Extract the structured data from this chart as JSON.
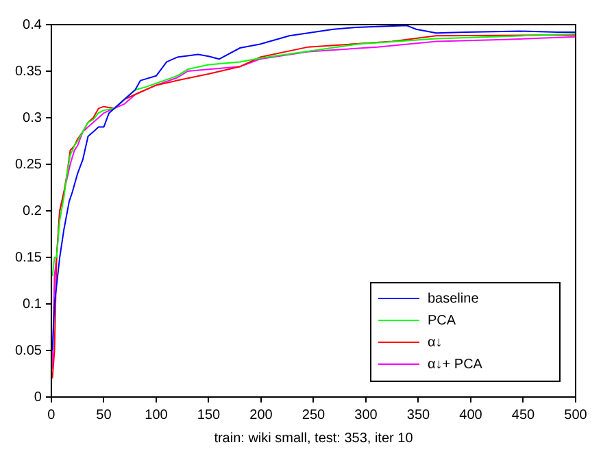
{
  "chart_data": {
    "type": "line",
    "xlabel": "train: wiki small, test: 353, iter 10",
    "xlim": [
      0,
      500
    ],
    "xticks": [
      0,
      50,
      100,
      150,
      200,
      250,
      300,
      350,
      400,
      450,
      500
    ],
    "ylim": [
      0,
      0.4
    ],
    "yticks": [
      0,
      0.05,
      0.1,
      0.15,
      0.2,
      0.25,
      0.3,
      0.35,
      0.4
    ],
    "grid": false,
    "legend": "bottom right",
    "marker": "none",
    "line_style": "solid",
    "series": [
      {
        "name": "baseline",
        "color": "#0000ff",
        "x": [
          1,
          3,
          5,
          8,
          12,
          17,
          20,
          25,
          30,
          35,
          40,
          45,
          50,
          55,
          60,
          70,
          80,
          85,
          100,
          110,
          120,
          140,
          150,
          160,
          180,
          199,
          227,
          269,
          290,
          339,
          348,
          367,
          395,
          447,
          483,
          500
        ],
        "values": [
          0.05,
          0.1,
          0.12,
          0.15,
          0.18,
          0.21,
          0.22,
          0.24,
          0.255,
          0.28,
          0.285,
          0.29,
          0.29,
          0.305,
          0.31,
          0.32,
          0.33,
          0.34,
          0.345,
          0.36,
          0.365,
          0.368,
          0.366,
          0.363,
          0.375,
          0.379,
          0.388,
          0.395,
          0.397,
          0.399,
          0.395,
          0.391,
          0.392,
          0.393,
          0.392,
          0.392
        ]
      },
      {
        "name": "PCA",
        "color": "#00ff00",
        "x": [
          1,
          3,
          5,
          8,
          12,
          15,
          18,
          22,
          25,
          30,
          35,
          40,
          45,
          50,
          60,
          70,
          80,
          90,
          100,
          120,
          130,
          150,
          180,
          199,
          292,
          367,
          500
        ],
        "values": [
          0.13,
          0.15,
          0.15,
          0.19,
          0.215,
          0.24,
          0.26,
          0.27,
          0.275,
          0.285,
          0.295,
          0.298,
          0.305,
          0.308,
          0.31,
          0.32,
          0.33,
          0.333,
          0.337,
          0.345,
          0.352,
          0.357,
          0.36,
          0.364,
          0.379,
          0.385,
          0.39
        ]
      },
      {
        "name": "α↓",
        "color": "#ff0000",
        "x": [
          1,
          3,
          5,
          8,
          12,
          15,
          18,
          22,
          25,
          30,
          35,
          40,
          45,
          50,
          60,
          70,
          80,
          90,
          100,
          120,
          150,
          180,
          199,
          245,
          325,
          367,
          500
        ],
        "values": [
          0.02,
          0.05,
          0.15,
          0.2,
          0.22,
          0.24,
          0.265,
          0.27,
          0.277,
          0.285,
          0.295,
          0.3,
          0.31,
          0.312,
          0.31,
          0.32,
          0.325,
          0.33,
          0.335,
          0.34,
          0.347,
          0.355,
          0.365,
          0.376,
          0.382,
          0.388,
          0.389
        ]
      },
      {
        "name": "α↓+ PCA",
        "color": "#ff00ff",
        "x": [
          1,
          3,
          5,
          8,
          12,
          15,
          18,
          22,
          25,
          30,
          35,
          40,
          45,
          50,
          60,
          70,
          80,
          90,
          100,
          120,
          130,
          150,
          180,
          199,
          245,
          311,
          367,
          433,
          500
        ],
        "values": [
          0.03,
          0.13,
          0.15,
          0.2,
          0.22,
          0.235,
          0.25,
          0.265,
          0.27,
          0.285,
          0.29,
          0.295,
          0.3,
          0.305,
          0.31,
          0.315,
          0.325,
          0.33,
          0.335,
          0.343,
          0.35,
          0.352,
          0.355,
          0.363,
          0.371,
          0.376,
          0.382,
          0.384,
          0.387
        ]
      }
    ]
  }
}
